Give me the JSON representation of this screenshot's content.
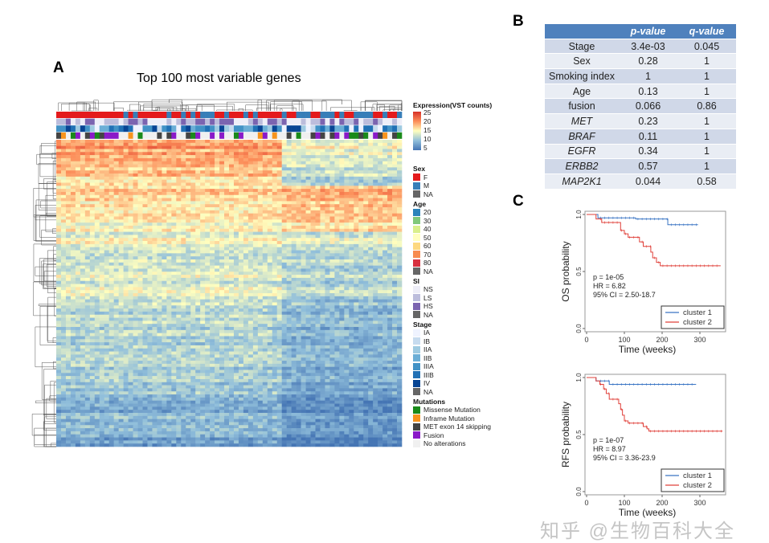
{
  "panels": {
    "a": "A",
    "b": "B",
    "c": "C"
  },
  "watermark": "知乎 @生物百科大全",
  "chart_data": [
    {
      "type": "heatmap",
      "title": "Top 100 most variable genes",
      "rows": 100,
      "colorscale": {
        "title": "Expression(VST counts)",
        "ticks": [
          "25",
          "20",
          "15",
          "10",
          "5"
        ],
        "colors": [
          "#d73027",
          "#fc8d59",
          "#ffffbf",
          "#91bfdb",
          "#4575b4"
        ]
      },
      "clusters": 2,
      "legend": [
        {
          "title": "Sex",
          "items": [
            {
              "label": "F",
              "color": "#e41a1c"
            },
            {
              "label": "M",
              "color": "#377eb8"
            },
            {
              "label": "NA",
              "color": "#666666"
            }
          ]
        },
        {
          "title": "Age",
          "items": [
            {
              "label": "20",
              "color": "#2b83ba"
            },
            {
              "label": "30",
              "color": "#80c87a"
            },
            {
              "label": "40",
              "color": "#d9ef8b"
            },
            {
              "label": "50",
              "color": "#ffffbf"
            },
            {
              "label": "60",
              "color": "#fdd87f"
            },
            {
              "label": "70",
              "color": "#f78b4f"
            },
            {
              "label": "80",
              "color": "#d7303f"
            },
            {
              "label": "NA",
              "color": "#666666"
            }
          ]
        },
        {
          "title": "SI",
          "items": [
            {
              "label": "NS",
              "color": "#eeeef8"
            },
            {
              "label": "LS",
              "color": "#bcbddc"
            },
            {
              "label": "HS",
              "color": "#7b64b0"
            },
            {
              "label": "NA",
              "color": "#666666"
            }
          ]
        },
        {
          "title": "Stage",
          "items": [
            {
              "label": "IA",
              "color": "#eff3ff"
            },
            {
              "label": "IB",
              "color": "#c6dbef"
            },
            {
              "label": "IIA",
              "color": "#9ecae1"
            },
            {
              "label": "IIB",
              "color": "#6baed6"
            },
            {
              "label": "IIIA",
              "color": "#4292c6"
            },
            {
              "label": "IIIB",
              "color": "#2171b5"
            },
            {
              "label": "IV",
              "color": "#084594"
            },
            {
              "label": "NA",
              "color": "#666666"
            }
          ]
        },
        {
          "title": "Mutations",
          "items": [
            {
              "label": "Missense Mutation",
              "color": "#1a8a1a"
            },
            {
              "label": "Inframe Mutation",
              "color": "#f7941d"
            },
            {
              "label": "MET exon 14 skipping",
              "color": "#444444"
            },
            {
              "label": "Fusion",
              "color": "#8a1ac8"
            },
            {
              "label": "No alterations",
              "color": "#f0f0f0"
            }
          ]
        }
      ]
    },
    {
      "type": "table",
      "columns": [
        "",
        "p-value",
        "q-value"
      ],
      "rows": [
        [
          "Stage",
          "3.4e-03",
          "0.045",
          false
        ],
        [
          "Sex",
          "0.28",
          "1",
          false
        ],
        [
          "Smoking index",
          "1",
          "1",
          false
        ],
        [
          "Age",
          "0.13",
          "1",
          false
        ],
        [
          "fusion",
          "0.066",
          "0.86",
          false
        ],
        [
          "MET",
          "0.23",
          "1",
          true
        ],
        [
          "BRAF",
          "0.11",
          "1",
          true
        ],
        [
          "EGFR",
          "0.34",
          "1",
          true
        ],
        [
          "ERBB2",
          "0.57",
          "1",
          true
        ],
        [
          "MAP2K1",
          "0.044",
          "0.58",
          true
        ]
      ]
    },
    {
      "type": "line",
      "subtype": "kaplan-meier",
      "ylabel": "OS probability",
      "xlabel": "Time (weeks)",
      "xlim": [
        0,
        370
      ],
      "ylim": [
        0,
        1
      ],
      "xticks": [
        "0",
        "100",
        "200",
        "300"
      ],
      "yticks": [
        "0.0",
        "0.5",
        "1.0"
      ],
      "annot": [
        "p = 1e-05",
        "HR = 6.82",
        "95% CI = 2.50-18.7"
      ],
      "legend_position": "bottom-right",
      "series": [
        {
          "name": "cluster 1",
          "color": "#3a75c4",
          "x": [
            0,
            25,
            30,
            130,
            210,
            215,
            295
          ],
          "y": [
            1,
            1,
            0.97,
            0.96,
            0.96,
            0.91,
            0.91
          ]
        },
        {
          "name": "cluster 2",
          "color": "#e0403a",
          "x": [
            0,
            25,
            40,
            90,
            100,
            110,
            140,
            150,
            170,
            175,
            185,
            195,
            355
          ],
          "y": [
            1,
            0.96,
            0.93,
            0.86,
            0.83,
            0.8,
            0.76,
            0.72,
            0.67,
            0.62,
            0.58,
            0.55,
            0.55
          ]
        }
      ]
    },
    {
      "type": "line",
      "subtype": "kaplan-meier",
      "ylabel": "RFS probability",
      "xlabel": "Time (weeks)",
      "xlim": [
        0,
        370
      ],
      "ylim": [
        0,
        1
      ],
      "xticks": [
        "0",
        "100",
        "200",
        "300"
      ],
      "yticks": [
        "0.0",
        "0.5",
        "1.0"
      ],
      "annot": [
        "p = 1e-07",
        "HR = 8.97",
        "95% CI = 3.36-23.9"
      ],
      "legend_position": "bottom-right",
      "series": [
        {
          "name": "cluster 1",
          "color": "#3a75c4",
          "x": [
            0,
            25,
            60,
            290
          ],
          "y": [
            1,
            0.97,
            0.94,
            0.94
          ]
        },
        {
          "name": "cluster 2",
          "color": "#e0403a",
          "x": [
            0,
            25,
            35,
            45,
            52,
            60,
            85,
            90,
            95,
            100,
            110,
            150,
            160,
            165,
            360
          ],
          "y": [
            1,
            0.97,
            0.94,
            0.9,
            0.86,
            0.81,
            0.77,
            0.72,
            0.67,
            0.62,
            0.6,
            0.57,
            0.55,
            0.53,
            0.53
          ]
        }
      ]
    }
  ]
}
